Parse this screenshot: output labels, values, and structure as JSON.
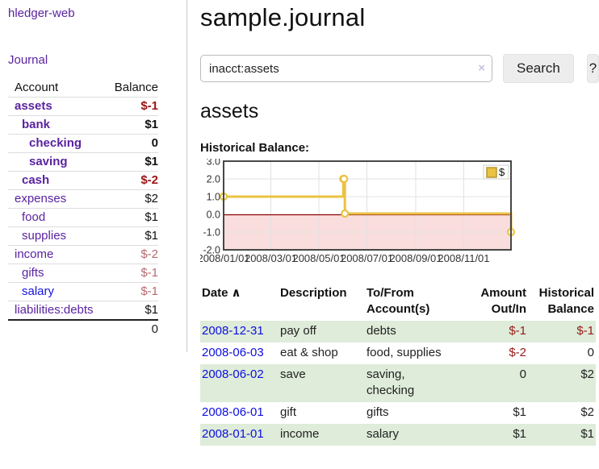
{
  "app": {
    "title": "hledger-web",
    "nav_journal": "Journal"
  },
  "colors": {
    "link_purple": "#5a23a0",
    "link_blue": "#1414e0",
    "neg_strong": "#9a1414",
    "neg_soft": "#b56a6e",
    "reg_neg": "#971a17",
    "row_green": "#deecd9",
    "chart_gold": "#e9c343",
    "chart_gold_dark": "#b8962e",
    "chart_pink": "#fadddd",
    "zero_line": "#8b0000",
    "grid": "#e2e2e2",
    "chart_border": "#474747"
  },
  "sidebar": {
    "headers": {
      "account": "Account",
      "balance": "Balance"
    },
    "accounts": [
      {
        "name": "assets",
        "indent": 0,
        "bold": true,
        "link": "purple",
        "balance": "$-1",
        "balance_class": "neg-strong"
      },
      {
        "name": "bank",
        "indent": 1,
        "bold": true,
        "link": "purple",
        "balance": "$1",
        "balance_class": "pos"
      },
      {
        "name": "checking",
        "indent": 2,
        "bold": true,
        "link": "purple",
        "balance": "0",
        "balance_class": "pos"
      },
      {
        "name": "saving",
        "indent": 2,
        "bold": true,
        "link": "purple",
        "balance": "$1",
        "balance_class": "pos"
      },
      {
        "name": "cash",
        "indent": 1,
        "bold": true,
        "link": "purple",
        "balance": "$-2",
        "balance_class": "neg-strong"
      },
      {
        "name": "expenses",
        "indent": 0,
        "bold": false,
        "link": "purple",
        "balance": "$2",
        "balance_class": "pos"
      },
      {
        "name": "food",
        "indent": 1,
        "bold": false,
        "link": "purple",
        "balance": "$1",
        "balance_class": "pos"
      },
      {
        "name": "supplies",
        "indent": 1,
        "bold": false,
        "link": "purple",
        "balance": "$1",
        "balance_class": "pos"
      },
      {
        "name": "income",
        "indent": 0,
        "bold": false,
        "link": "purple",
        "balance": "$-2",
        "balance_class": "neg-soft"
      },
      {
        "name": "gifts",
        "indent": 1,
        "bold": false,
        "link": "purple",
        "balance": "$-1",
        "balance_class": "neg-soft"
      },
      {
        "name": "salary",
        "indent": 1,
        "bold": false,
        "link": "blue",
        "balance": "$-1",
        "balance_class": "neg-soft"
      },
      {
        "name": "liabilities:debts",
        "indent": 0,
        "bold": false,
        "link": "purple",
        "balance": "$1",
        "balance_class": "pos"
      }
    ],
    "total": "0"
  },
  "main": {
    "title": "sample.journal",
    "search": {
      "value": "inacct:assets",
      "clear_icon": "×",
      "button_label": "Search",
      "help_label": "?"
    },
    "account_heading": "assets",
    "chart_label": "Historical Balance:"
  },
  "chart_data": {
    "type": "line",
    "step": true,
    "title": "Historical Balance:",
    "series": [
      {
        "name": "$",
        "points": [
          [
            "2008-01-01",
            1
          ],
          [
            "2008-06-01",
            2
          ],
          [
            "2008-06-02",
            2
          ],
          [
            "2008-06-03",
            0
          ],
          [
            "2008-12-31",
            -1
          ]
        ]
      }
    ],
    "xlim": [
      "2008-01-01",
      "2008-12-31"
    ],
    "ylim": [
      -2,
      3
    ],
    "y_ticks": [
      "3.0",
      "2.0",
      "1.0",
      "0.0",
      "-1.0",
      "-2.0"
    ],
    "x_ticks": [
      {
        "label": "2008/01/01",
        "date": "2008-01-01"
      },
      {
        "label": "2008/03/01",
        "date": "2008-03-01"
      },
      {
        "label": "2008/05/01",
        "date": "2008-05-01"
      },
      {
        "label": "2008/07/01",
        "date": "2008-07-01"
      },
      {
        "label": "2008/09/01",
        "date": "2008-09-01"
      },
      {
        "label": "2008/11/01",
        "date": "2008-11-01"
      }
    ],
    "legend": {
      "label": "$",
      "position": "top-right"
    },
    "grid": true,
    "negative_region_shaded": true
  },
  "register": {
    "headers": [
      {
        "lines": [
          "Date"
        ],
        "align": "left",
        "sort": true
      },
      {
        "lines": [
          "Description"
        ],
        "align": "left"
      },
      {
        "lines": [
          "To/From",
          "Account(s)"
        ],
        "align": "left"
      },
      {
        "lines": [
          "Amount",
          "Out/In"
        ],
        "align": "right"
      },
      {
        "lines": [
          "Historical",
          "Balance"
        ],
        "align": "right"
      }
    ],
    "sort_caret": "∧",
    "rows": [
      {
        "date": "2008-12-31",
        "description": "pay off",
        "accounts_lines": [
          "debts"
        ],
        "amount": "$-1",
        "amount_neg": true,
        "balance": "$-1",
        "balance_neg": true,
        "shaded": true
      },
      {
        "date": "2008-06-03",
        "description": "eat & shop",
        "accounts_lines": [
          "food, supplies"
        ],
        "amount": "$-2",
        "amount_neg": true,
        "balance": "0",
        "balance_neg": false,
        "shaded": false
      },
      {
        "date": "2008-06-02",
        "description": "save",
        "accounts_lines": [
          "saving,",
          "checking"
        ],
        "amount": "0",
        "amount_neg": false,
        "balance": "$2",
        "balance_neg": false,
        "shaded": true
      },
      {
        "date": "2008-06-01",
        "description": "gift",
        "accounts_lines": [
          "gifts"
        ],
        "amount": "$1",
        "amount_neg": false,
        "balance": "$2",
        "balance_neg": false,
        "shaded": false
      },
      {
        "date": "2008-01-01",
        "description": "income",
        "accounts_lines": [
          "salary"
        ],
        "amount": "$1",
        "amount_neg": false,
        "balance": "$1",
        "balance_neg": false,
        "shaded": true
      }
    ]
  }
}
